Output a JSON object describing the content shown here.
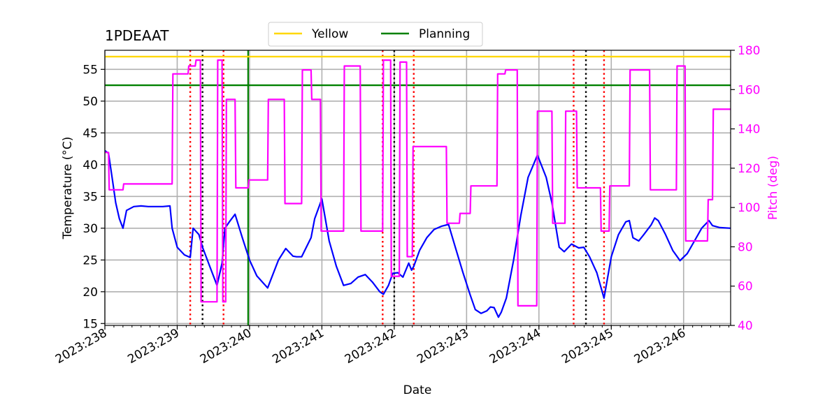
{
  "chart_data": {
    "type": "line",
    "title": "1PDEAAT",
    "xlabel": "Date",
    "ylabel": "Temperature ($^\\circ$C)",
    "ylabel_left_display": "Temperature (°C)",
    "y2label": "Pitch (deg)",
    "xlim": [
      238.0,
      246.65
    ],
    "ylim": [
      14.7,
      58.0
    ],
    "y2lim": [
      40,
      180
    ],
    "xticks": [
      {
        "value": 238,
        "label": "2023:238"
      },
      {
        "value": 239,
        "label": "2023:239"
      },
      {
        "value": 240,
        "label": "2023:240"
      },
      {
        "value": 241,
        "label": "2023:241"
      },
      {
        "value": 242,
        "label": "2023:242"
      },
      {
        "value": 243,
        "label": "2023:243"
      },
      {
        "value": 244,
        "label": "2023:244"
      },
      {
        "value": 245,
        "label": "2023:245"
      },
      {
        "value": 246,
        "label": "2023:246"
      }
    ],
    "yticks": [
      15,
      20,
      25,
      30,
      35,
      40,
      45,
      50,
      55
    ],
    "y2ticks": [
      40,
      60,
      80,
      100,
      120,
      140,
      160,
      180
    ],
    "grid": true,
    "legend": {
      "placement": "top-center",
      "entries": [
        {
          "label": "Yellow",
          "color": "#FFD700"
        },
        {
          "label": "Planning",
          "color": "#008000"
        }
      ]
    },
    "limits": [
      {
        "name": "Yellow",
        "value": 57.0,
        "color": "#FFD700"
      },
      {
        "name": "Planning",
        "value": 52.5,
        "color": "#008000"
      }
    ],
    "vertical_markers": {
      "red_dotted": [
        239.18,
        239.64,
        241.84,
        242.27,
        244.48,
        244.9
      ],
      "black_dotted": [
        239.35,
        242.0,
        244.65
      ],
      "green_solid": [
        239.98
      ]
    },
    "series": [
      {
        "name": "Temperature",
        "axis": "left",
        "color": "#0000FF",
        "x": [
          238.0,
          238.05,
          238.1,
          238.15,
          238.2,
          238.25,
          238.3,
          238.4,
          238.5,
          238.6,
          238.7,
          238.8,
          238.9,
          238.93,
          239.0,
          239.1,
          239.18,
          239.22,
          239.3,
          239.35,
          239.45,
          239.55,
          239.62,
          239.66,
          239.72,
          239.8,
          239.9,
          240.0,
          240.1,
          240.25,
          240.4,
          240.5,
          240.6,
          240.65,
          240.72,
          240.85,
          240.9,
          241.0,
          241.1,
          241.2,
          241.3,
          241.4,
          241.5,
          241.6,
          241.7,
          241.8,
          241.85,
          241.92,
          241.98,
          242.05,
          242.12,
          242.2,
          242.24,
          242.27,
          242.35,
          242.45,
          242.55,
          242.65,
          242.75,
          242.85,
          242.95,
          243.05,
          243.12,
          243.2,
          243.28,
          243.33,
          243.38,
          243.44,
          243.48,
          243.55,
          243.65,
          243.75,
          243.85,
          243.98,
          244.1,
          244.18,
          244.28,
          244.35,
          244.45,
          244.55,
          244.62,
          244.7,
          244.8,
          244.9,
          245.0,
          245.1,
          245.2,
          245.25,
          245.3,
          245.38,
          245.45,
          245.55,
          245.6,
          245.65,
          245.75,
          245.85,
          245.95,
          246.05,
          246.15,
          246.25,
          246.35,
          246.4,
          246.5,
          246.65
        ],
        "y": [
          42.2,
          41.8,
          38.0,
          34.0,
          31.5,
          30.0,
          32.8,
          33.4,
          33.5,
          33.4,
          33.4,
          33.4,
          33.5,
          30.0,
          27.0,
          25.8,
          25.4,
          30.0,
          29.0,
          27.0,
          24.0,
          21.0,
          24.5,
          30.0,
          31.0,
          32.2,
          28.5,
          25.0,
          22.5,
          20.6,
          25.0,
          26.8,
          25.6,
          25.5,
          25.5,
          28.5,
          31.5,
          34.6,
          28.0,
          24.0,
          21.0,
          21.3,
          22.3,
          22.7,
          21.5,
          20.0,
          19.6,
          21.0,
          22.9,
          23.0,
          22.3,
          24.5,
          23.4,
          24.0,
          26.5,
          28.5,
          29.8,
          30.3,
          30.6,
          26.8,
          23.0,
          19.5,
          17.2,
          16.6,
          17.0,
          17.6,
          17.5,
          16.0,
          16.8,
          19.0,
          25.0,
          32.0,
          38.0,
          41.5,
          38.0,
          34.0,
          27.0,
          26.3,
          27.5,
          26.9,
          27.0,
          25.5,
          23.0,
          19.0,
          25.5,
          29.0,
          31.0,
          31.2,
          28.5,
          28.0,
          29.0,
          30.5,
          31.6,
          31.2,
          29.0,
          26.5,
          24.9,
          26.0,
          28.0,
          30.0,
          31.2,
          30.4,
          30.1,
          30.0
        ]
      },
      {
        "name": "Pitch",
        "axis": "right",
        "color": "#FF00FF",
        "x": [
          238.0,
          238.05,
          238.06,
          238.25,
          238.26,
          238.93,
          238.94,
          239.15,
          239.16,
          239.25,
          239.26,
          239.32,
          239.33,
          239.55,
          239.56,
          239.62,
          239.63,
          239.67,
          239.68,
          239.8,
          239.81,
          239.98,
          239.99,
          240.25,
          240.26,
          240.48,
          240.49,
          240.72,
          240.73,
          240.85,
          240.86,
          240.98,
          240.99,
          241.3,
          241.31,
          241.53,
          241.54,
          241.84,
          241.85,
          241.95,
          241.96,
          242.07,
          242.08,
          242.17,
          242.18,
          242.25,
          242.26,
          242.72,
          242.73,
          242.9,
          242.91,
          243.05,
          243.06,
          243.42,
          243.43,
          243.53,
          243.54,
          243.7,
          243.71,
          243.97,
          243.98,
          244.18,
          244.19,
          244.36,
          244.37,
          244.52,
          244.53,
          244.64,
          244.65,
          244.85,
          244.86,
          244.97,
          244.98,
          245.25,
          245.26,
          245.53,
          245.54,
          245.9,
          245.91,
          246.02,
          246.03,
          246.33,
          246.34,
          246.4,
          246.41,
          246.65
        ],
        "y": [
          128,
          128,
          109,
          109,
          112,
          112,
          168,
          168,
          172,
          172,
          175,
          175,
          52,
          52,
          175,
          175,
          52,
          52,
          155,
          155,
          110,
          110,
          114,
          114,
          155,
          155,
          102,
          102,
          170,
          170,
          155,
          155,
          88,
          88,
          172,
          172,
          88,
          88,
          175,
          175,
          65,
          65,
          174,
          174,
          75,
          75,
          131,
          131,
          92,
          92,
          97,
          97,
          111,
          111,
          168,
          168,
          170,
          170,
          50,
          50,
          149,
          149,
          92,
          92,
          149,
          149,
          110,
          110,
          110,
          110,
          88,
          88,
          111,
          111,
          170,
          170,
          109,
          109,
          172,
          172,
          83,
          83,
          104,
          104,
          150,
          150
        ]
      }
    ]
  }
}
